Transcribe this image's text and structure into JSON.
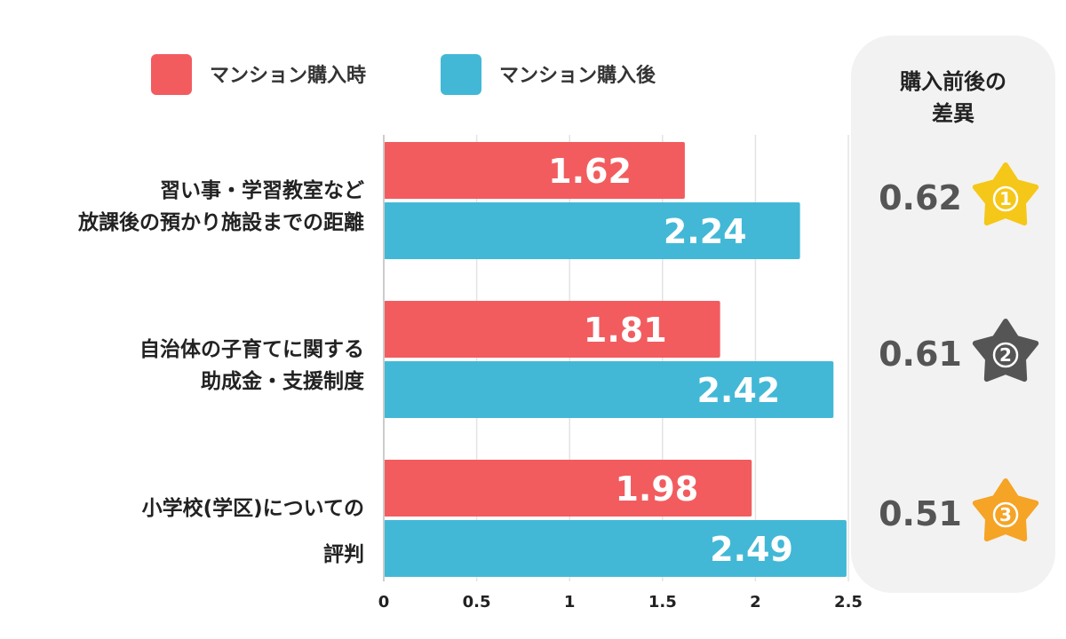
{
  "chart_data": {
    "type": "bar",
    "orientation": "horizontal",
    "categories": [
      [
        "習い事・学習教室など",
        "放課後の預かり施設までの距離"
      ],
      [
        "自治体の子育てに関する",
        "助成金・支援制度"
      ],
      [
        "小学校(学区)についての",
        "評判"
      ]
    ],
    "series": [
      {
        "name": "マンション購入時",
        "color": "#f25c5f",
        "values": [
          1.62,
          1.81,
          1.98
        ],
        "labels": [
          "1.62",
          "1.81",
          "1.98"
        ]
      },
      {
        "name": "マンション購入後",
        "color": "#42b8d6",
        "values": [
          2.24,
          2.42,
          2.49
        ],
        "labels": [
          "2.24",
          "2.42",
          "2.49"
        ]
      }
    ],
    "xlim": [
      0,
      2.5
    ],
    "ticks": [
      0,
      0.5,
      1,
      1.5,
      2,
      2.5
    ],
    "tick_labels": [
      "0",
      "0.5",
      "1",
      "1.5",
      "2",
      "2.5"
    ],
    "grid": "vertical",
    "legend": "top",
    "diff_panel": {
      "title": [
        "購入前後の",
        "差異"
      ],
      "rows": [
        {
          "value": "0.62",
          "rank": "1",
          "star_color": "#f5c718"
        },
        {
          "value": "0.61",
          "rank": "2",
          "star_color": "#555555"
        },
        {
          "value": "0.51",
          "rank": "3",
          "star_color": "#f5a425"
        }
      ],
      "panel_color": "#f2f2f2"
    }
  }
}
